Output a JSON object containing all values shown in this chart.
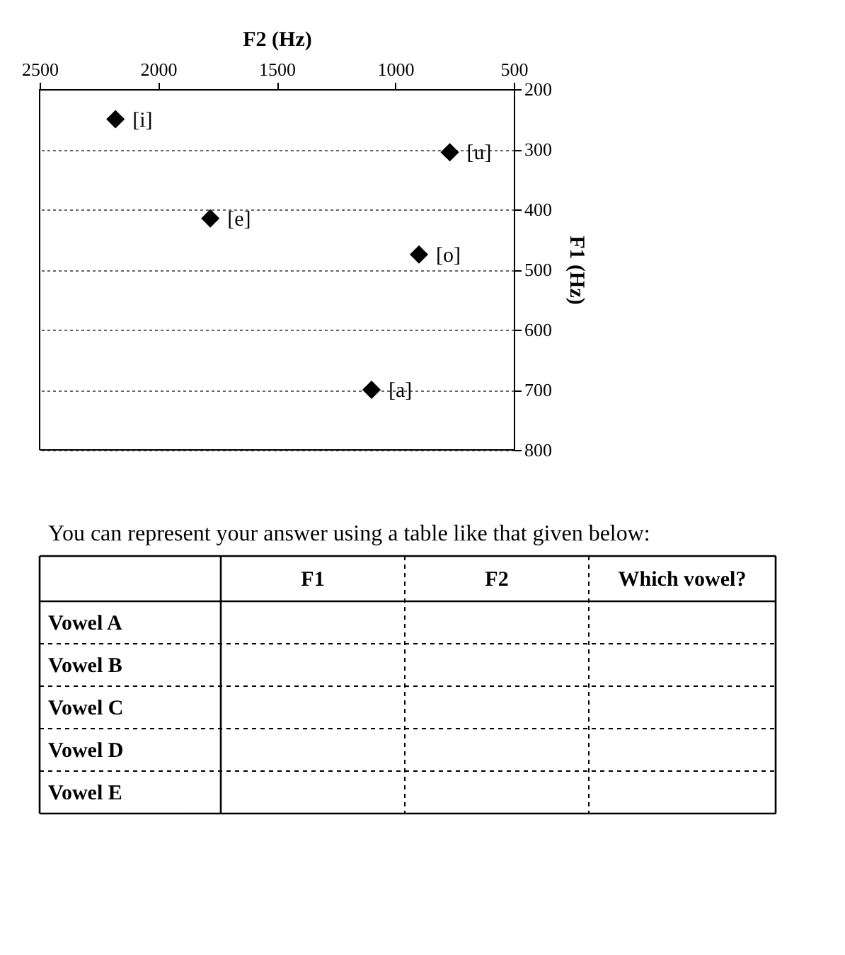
{
  "chart_data": {
    "type": "scatter",
    "xlabel": "F2 (Hz)",
    "ylabel": "F1 (Hz)",
    "x": [
      2180,
      1780,
      1100,
      900,
      770
    ],
    "series": [
      {
        "color": "#000000",
        "values": [
          250,
          415,
          700,
          475,
          305
        ]
      }
    ],
    "xlim": [
      2500,
      500
    ],
    "xticks": [
      2500,
      2000,
      1500,
      1000,
      500
    ],
    "ylim": [
      800,
      200
    ],
    "yticks": [
      200,
      300,
      400,
      500,
      600,
      700,
      800
    ],
    "grid": "y",
    "marker": "diamond",
    "annotations": [
      {
        "text": "[i]",
        "x": 2180,
        "y": 250
      },
      {
        "text": "[e]",
        "x": 1780,
        "y": 415
      },
      {
        "text": "[a]",
        "x": 1100,
        "y": 700
      },
      {
        "text": "[o]",
        "x": 900,
        "y": 475
      },
      {
        "text": "[u]",
        "x": 770,
        "y": 305
      },
      "You can represent your answer using a table like that given below:",
      "F1",
      "F2",
      "Which vowel?",
      "Vowel A",
      "Vowel B",
      "Vowel C",
      "Vowel D",
      "Vowel E"
    ]
  }
}
